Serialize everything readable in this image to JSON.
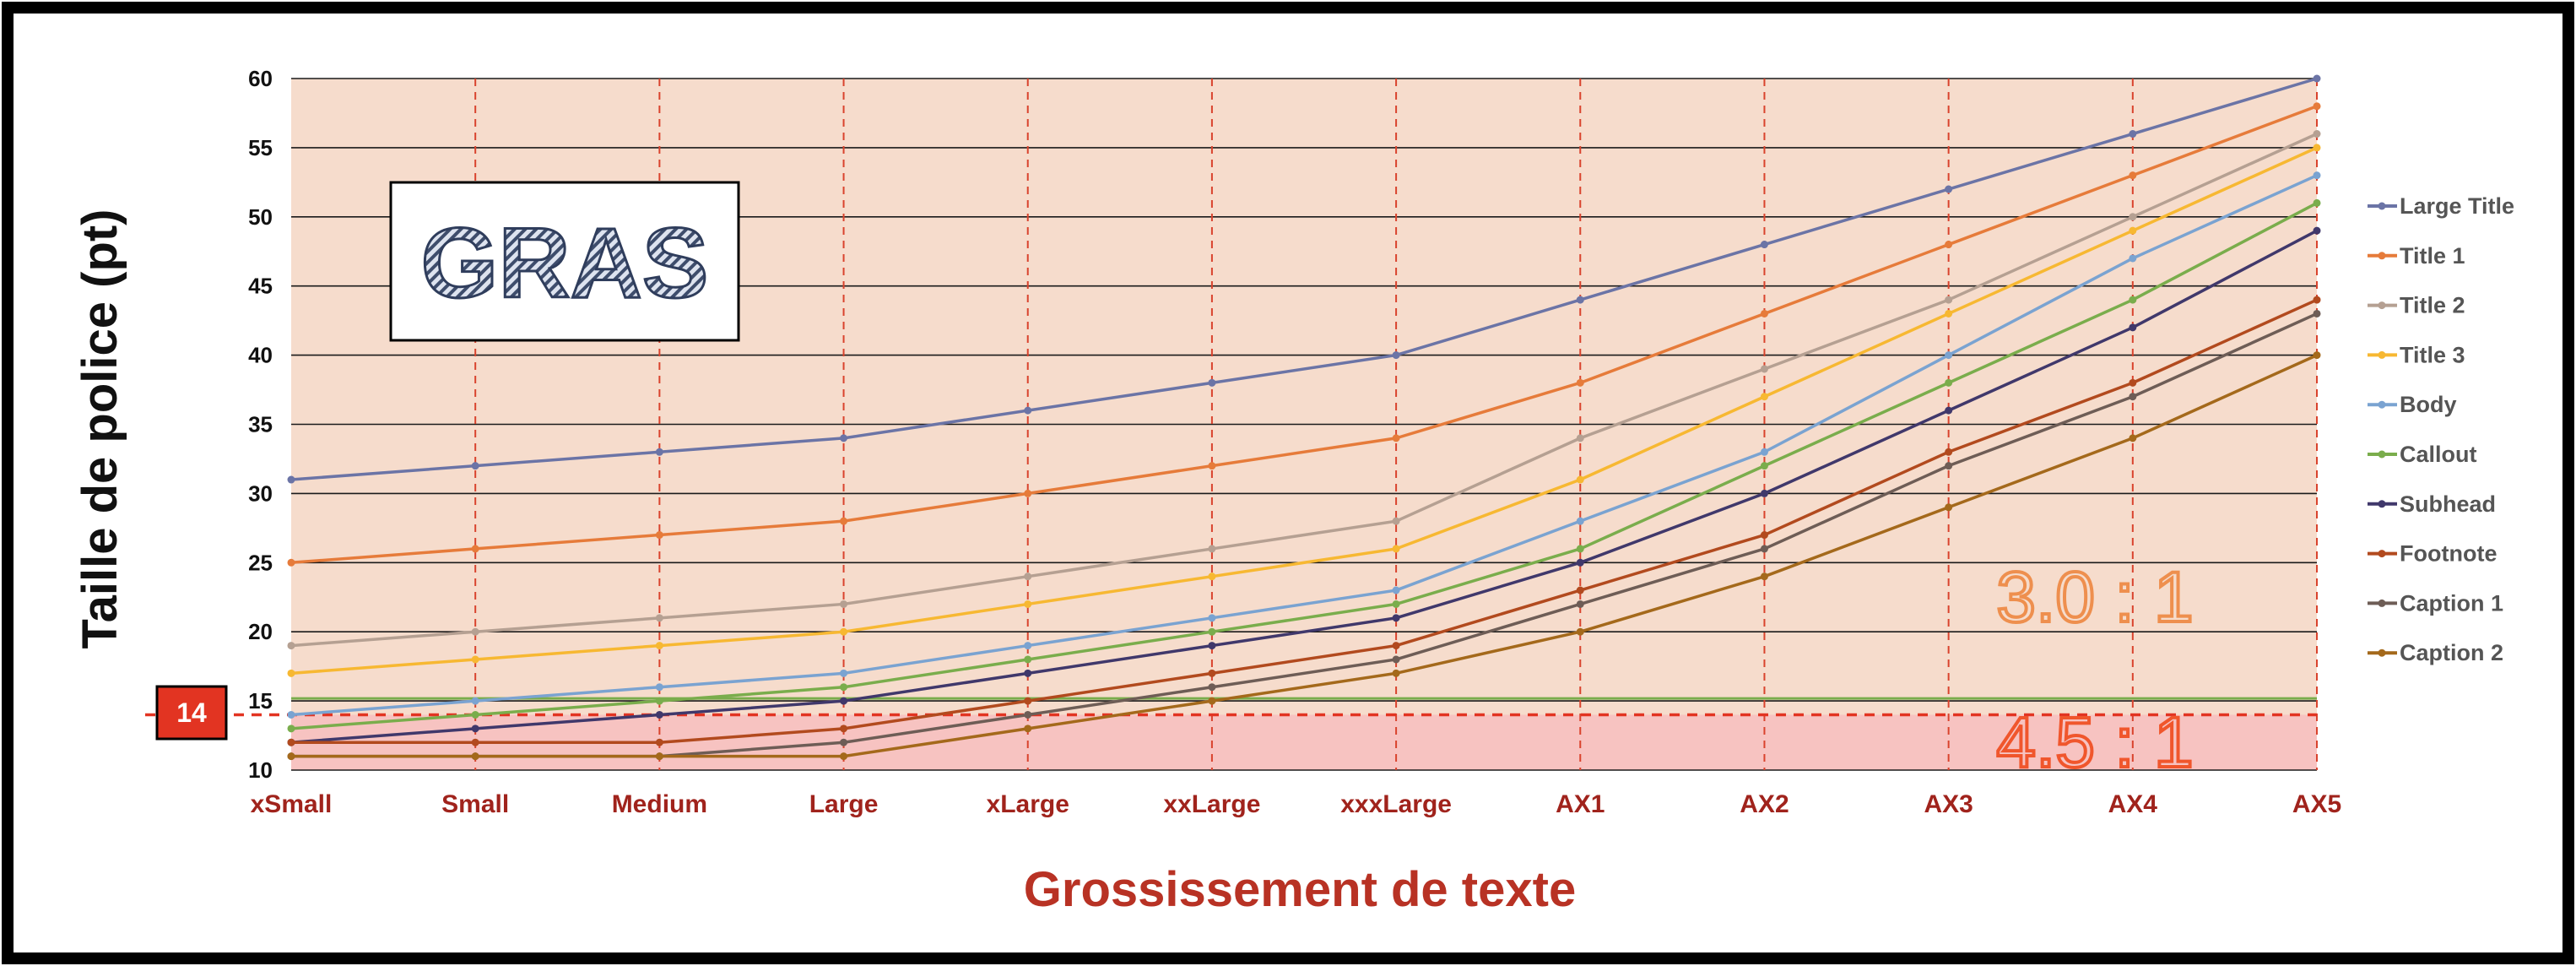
{
  "chart_data": {
    "type": "line",
    "categories": [
      "xSmall",
      "Small",
      "Medium",
      "Large",
      "xLarge",
      "xxLarge",
      "xxxLarge",
      "AX1",
      "AX2",
      "AX3",
      "AX4",
      "AX5"
    ],
    "series": [
      {
        "name": "Large Title",
        "color": "#6b74a6",
        "values": [
          31,
          32,
          33,
          34,
          36,
          38,
          40,
          44,
          48,
          52,
          56,
          60
        ]
      },
      {
        "name": "Title 1",
        "color": "#e67b3a",
        "values": [
          25,
          26,
          27,
          28,
          30,
          32,
          34,
          38,
          43,
          48,
          53,
          58
        ]
      },
      {
        "name": "Title 2",
        "color": "#b5a092",
        "values": [
          19,
          20,
          21,
          22,
          24,
          26,
          28,
          34,
          39,
          44,
          50,
          56
        ]
      },
      {
        "name": "Title 3",
        "color": "#f7b832",
        "values": [
          17,
          18,
          19,
          20,
          22,
          24,
          26,
          31,
          37,
          43,
          49,
          55
        ]
      },
      {
        "name": "Body",
        "color": "#7aa3d1",
        "values": [
          14,
          15,
          16,
          17,
          19,
          21,
          23,
          28,
          33,
          40,
          47,
          53
        ]
      },
      {
        "name": "Callout",
        "color": "#7aad4c",
        "values": [
          13,
          14,
          15,
          16,
          18,
          20,
          22,
          26,
          32,
          38,
          44,
          51
        ]
      },
      {
        "name": "Subhead",
        "color": "#40386b",
        "values": [
          12,
          13,
          14,
          15,
          17,
          19,
          21,
          25,
          30,
          36,
          42,
          49
        ]
      },
      {
        "name": "Footnote",
        "color": "#b24a1e",
        "values": [
          12,
          12,
          12,
          13,
          15,
          17,
          19,
          23,
          27,
          33,
          38,
          44
        ]
      },
      {
        "name": "Caption 1",
        "color": "#6e5d56",
        "values": [
          11,
          11,
          11,
          12,
          14,
          16,
          18,
          22,
          26,
          32,
          37,
          43
        ]
      },
      {
        "name": "Caption 2",
        "color": "#a4691b",
        "values": [
          11,
          11,
          11,
          11,
          13,
          15,
          17,
          20,
          24,
          29,
          34,
          40
        ]
      }
    ],
    "xlabel": "Grossissement de texte",
    "ylabel": "Taille de police (pt)",
    "ylim": [
      10,
      60
    ],
    "yticks": [
      10,
      15,
      20,
      25,
      30,
      35,
      40,
      45,
      50,
      55,
      60
    ],
    "grid": true,
    "legend_position": "right",
    "threshold": {
      "value": 14,
      "label": "14"
    },
    "annotations": {
      "style_label": "GRAS",
      "ratio_upper": "3.0 : 1",
      "ratio_lower": "4.5 : 1"
    },
    "colors": {
      "plot_background": "#f6dccc",
      "low_zone": "#f7c3c1",
      "category_label": "#a0231c",
      "x_title": "#b83224",
      "badge": "#e23422",
      "ratio_upper": "#ee8f4e",
      "ratio_lower": "#f0562c",
      "accent_green_line": "#7aad4c"
    }
  }
}
